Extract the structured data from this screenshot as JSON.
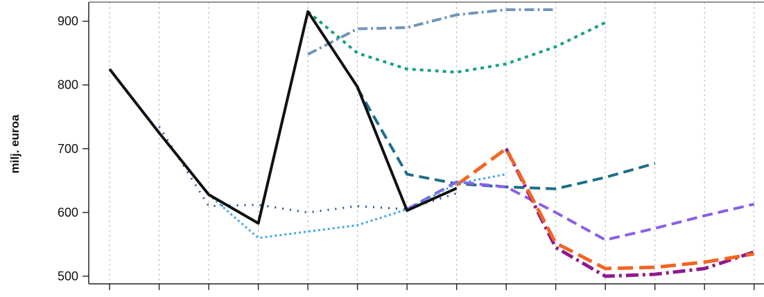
{
  "chart_data": {
    "type": "line",
    "title": "",
    "xlabel": "",
    "ylabel": "milj. euroa",
    "ylim": [
      488,
      930
    ],
    "yticks": [
      500,
      600,
      700,
      800,
      900
    ],
    "x": [
      0,
      1,
      2,
      3,
      4,
      5,
      6,
      7,
      8,
      9,
      10,
      11,
      12,
      13
    ],
    "xlim": [
      -0.42,
      13.2
    ],
    "grid": "vertical dotted",
    "legend": "none",
    "series": [
      {
        "values": [
          null,
          null,
          null,
          null,
          915,
          850,
          825,
          820,
          833,
          860,
          898,
          null,
          null,
          null
        ],
        "color": "#1a9e86",
        "dash": "5,6",
        "width": 4
      },
      {
        "values": [
          null,
          null,
          null,
          null,
          848,
          888,
          890,
          910,
          918,
          918,
          null,
          null,
          null,
          null
        ],
        "color": "#6f96b8",
        "dash": "14,5,3,5",
        "width": 4
      },
      {
        "values": [
          null,
          null,
          null,
          null,
          null,
          795,
          660,
          645,
          640,
          637,
          655,
          677,
          null,
          null
        ],
        "color": "#1b6e8a",
        "dash": "15,8",
        "width": 4
      },
      {
        "values": [
          null,
          null,
          null,
          null,
          null,
          null,
          605,
          648,
          640,
          600,
          557,
          575,
          595,
          613
        ],
        "color": "#8b5ee8",
        "dash": "15,8",
        "width": 4
      },
      {
        "values": [
          null,
          null,
          null,
          null,
          null,
          null,
          null,
          null,
          700,
          545,
          500,
          503,
          512,
          538
        ],
        "color": "#8e1a8e",
        "dash": "18,6,4,6",
        "width": 5
      },
      {
        "values": [
          null,
          null,
          null,
          null,
          null,
          null,
          null,
          643,
          700,
          552,
          512,
          514,
          522,
          535
        ],
        "color": "#f26522",
        "dash": "22,9",
        "width": 5
      },
      {
        "values": [
          null,
          735,
          610,
          612,
          600,
          610,
          605,
          630,
          null,
          null,
          null,
          null,
          null,
          null
        ],
        "color": "#24509a",
        "dash": "2,9",
        "width": 3
      },
      {
        "values": [
          null,
          null,
          628,
          560,
          570,
          580,
          605,
          645,
          660,
          null,
          null,
          null,
          null,
          null
        ],
        "color": "#3fa7f0",
        "dash": "3,4",
        "width": 3
      },
      {
        "values": [
          825,
          725,
          628,
          583,
          915,
          797,
          603,
          638,
          null,
          null,
          null,
          null,
          null,
          null
        ],
        "color": "#111111",
        "dash": "",
        "width": 4
      }
    ]
  }
}
